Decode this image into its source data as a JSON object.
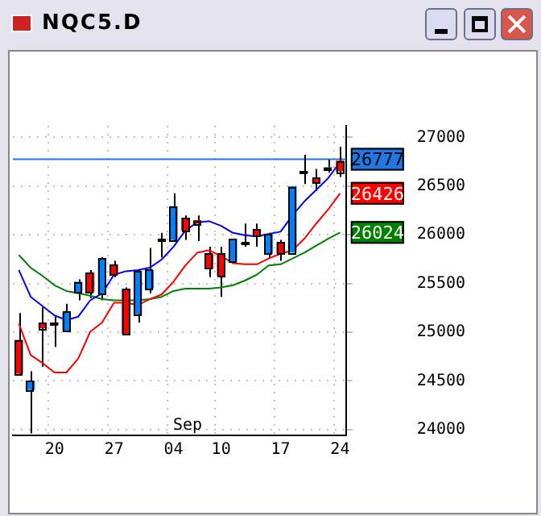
{
  "chart_data": {
    "type": "candlestick",
    "title": "NQC5.D",
    "categories": [
      null,
      null,
      null,
      "20",
      null,
      null,
      null,
      null,
      "27",
      null,
      null,
      null,
      null,
      "04",
      null,
      null,
      null,
      "10",
      null,
      null,
      null,
      null,
      "17",
      null,
      null,
      null,
      null,
      "24"
    ],
    "ohlc": [
      [
        24921,
        25196,
        24562,
        24574
      ],
      [
        24407,
        24598,
        23960,
        24502
      ],
      [
        25100,
        25255,
        24646,
        25040
      ],
      [
        25100,
        25160,
        24849,
        25076
      ],
      [
        25016,
        25291,
        25000,
        25208
      ],
      [
        25411,
        25542,
        25327,
        25518
      ],
      [
        25614,
        25638,
        25350,
        25411
      ],
      [
        25387,
        25770,
        25327,
        25757
      ],
      [
        25697,
        25733,
        25566,
        25590
      ],
      [
        25447,
        25460,
        24970,
        24980
      ],
      [
        25184,
        25640,
        25100,
        25626
      ],
      [
        25447,
        25865,
        25399,
        25638
      ],
      [
        25940,
        26020,
        25769,
        25955
      ],
      [
        25948,
        26426,
        25940,
        26295
      ],
      [
        26175,
        26199,
        25948,
        26044
      ],
      [
        26151,
        26199,
        25936,
        26116
      ],
      [
        25805,
        25877,
        25566,
        25650
      ],
      [
        25805,
        25877,
        25363,
        25578
      ],
      [
        25721,
        25960,
        25721,
        25960
      ],
      [
        25920,
        26116,
        25877,
        25900
      ],
      [
        26056,
        26116,
        25877,
        25996
      ],
      [
        25805,
        26020,
        25757,
        26008
      ],
      [
        25924,
        25948,
        25733,
        25805
      ],
      [
        25817,
        26498,
        25817,
        26498
      ],
      [
        26635,
        26821,
        26522,
        26650
      ],
      [
        26582,
        26677,
        26450,
        26534
      ],
      [
        26685,
        26773,
        26642,
        26695
      ],
      [
        26761,
        26904,
        26594,
        26653
      ]
    ],
    "colors": [
      "#ff0000",
      "#0080ff",
      "#ff0000",
      "#ff0000",
      "#0080ff",
      "#0080ff",
      "#ff0000",
      "#0080ff",
      "#ff0000",
      "#ff0000",
      "#0080ff",
      "#0080ff",
      "#0080ff",
      "#0080ff",
      "#ff0000",
      "#ff0000",
      "#ff0000",
      "#ff0000",
      "#0080ff",
      "#ff0000",
      "#ff0000",
      "#0080ff",
      "#ff0000",
      "#0080ff",
      "#0080ff",
      "#ff0000",
      "#0080ff",
      "#ff0000"
    ],
    "series": [
      {
        "type": "line",
        "color": "#0000ff",
        "values": [
          25638,
          25363,
          25267,
          25172,
          25124,
          25160,
          25327,
          25399,
          25590,
          25626,
          25638,
          25662,
          25745,
          25877,
          26044,
          26128,
          26140,
          26092,
          26020,
          25996,
          25984,
          26008,
          26032,
          26199,
          26343,
          26462,
          26582,
          26749
        ]
      },
      {
        "type": "line",
        "color": "#ff0000",
        "values": [
          25088,
          24765,
          24682,
          24586,
          24586,
          24730,
          25004,
          25100,
          25303,
          25303,
          25279,
          25339,
          25387,
          25518,
          25686,
          25817,
          25841,
          25781,
          25709,
          25697,
          25697,
          25757,
          25805,
          25841,
          25960,
          26116,
          26259,
          26426
        ],
        "value_labels": [
          null,
          null,
          null,
          null,
          null,
          null,
          null,
          null,
          null,
          null,
          null,
          null,
          null,
          null,
          null,
          null,
          null,
          null,
          null,
          null,
          null,
          null,
          null,
          null,
          null,
          null,
          null,
          "26426"
        ]
      },
      {
        "type": "line",
        "color": "#008000",
        "values": [
          25793,
          25662,
          25578,
          25482,
          25423,
          25399,
          25375,
          25339,
          25327,
          25327,
          25327,
          25339,
          25363,
          25423,
          25447,
          25447,
          25447,
          25459,
          25482,
          25530,
          25590,
          25686,
          25697,
          25757,
          25817,
          25889,
          25960,
          26024
        ],
        "value_labels": [
          null,
          null,
          null,
          null,
          null,
          null,
          null,
          null,
          null,
          null,
          null,
          null,
          null,
          null,
          null,
          null,
          null,
          null,
          null,
          null,
          null,
          null,
          null,
          null,
          null,
          null,
          null,
          "26024"
        ]
      }
    ],
    "ylim": [
      23940,
      27120
    ],
    "yticks": [
      24000,
      24500,
      25000,
      25500,
      26000,
      26500,
      27000
    ],
    "ref_lines": [
      {
        "axis": "y",
        "value": 26777,
        "label": "26777",
        "color": "#1e78e6"
      }
    ],
    "annotations": [
      "Sep"
    ],
    "grid": true,
    "legend": false
  }
}
